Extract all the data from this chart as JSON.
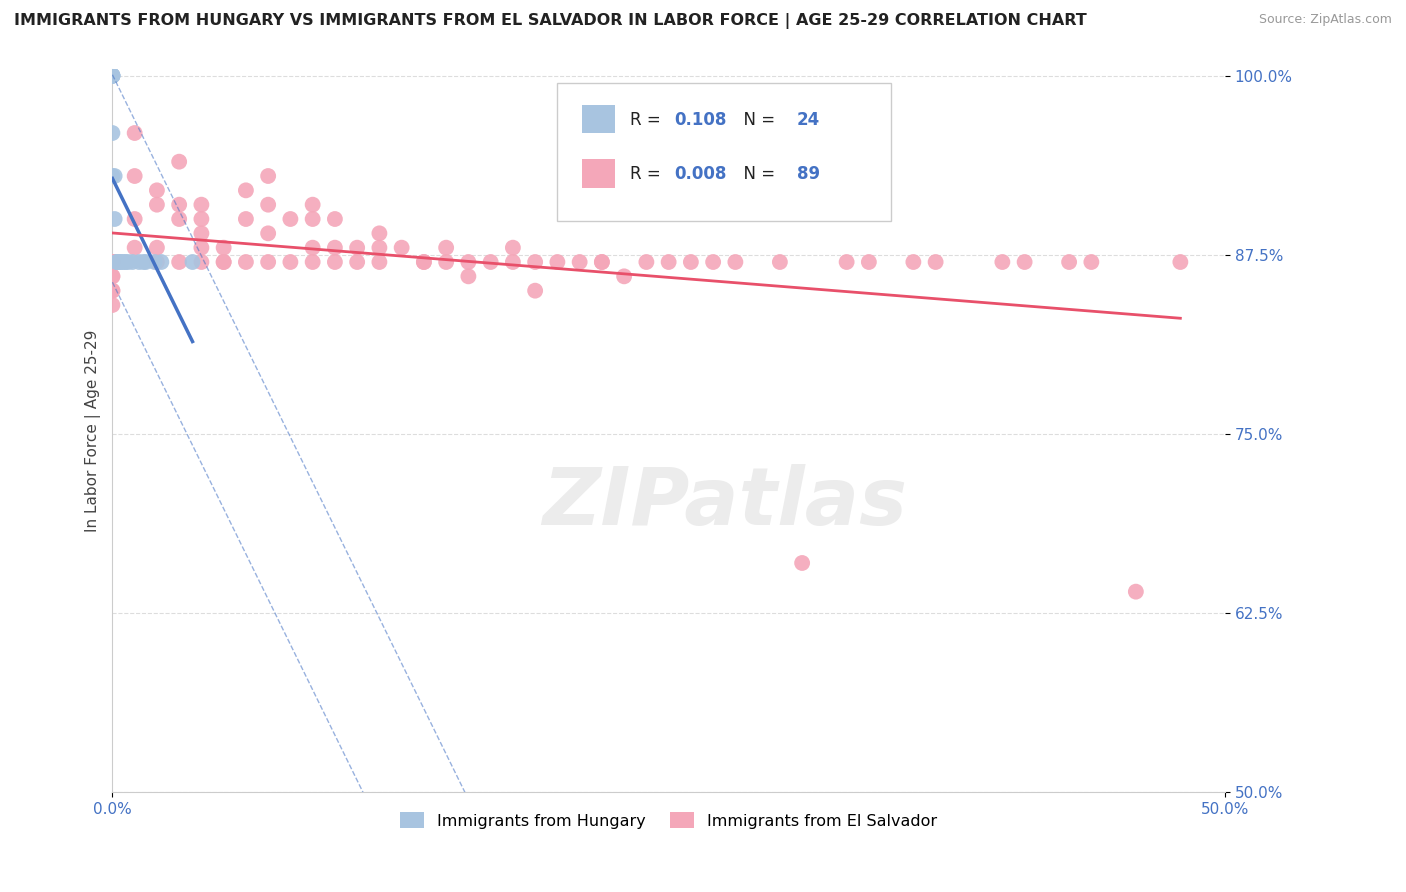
{
  "title": "IMMIGRANTS FROM HUNGARY VS IMMIGRANTS FROM EL SALVADOR IN LABOR FORCE | AGE 25-29 CORRELATION CHART",
  "source": "Source: ZipAtlas.com",
  "ylabel": "In Labor Force | Age 25-29",
  "xlim": [
    0.0,
    0.5
  ],
  "ylim": [
    0.5,
    1.005
  ],
  "xticks": [
    0.0,
    0.5
  ],
  "xticklabels": [
    "0.0%",
    "50.0%"
  ],
  "yticks": [
    0.5,
    0.625,
    0.75,
    0.875,
    1.0
  ],
  "yticklabels": [
    "50.0%",
    "62.5%",
    "75.0%",
    "87.5%",
    "100.0%"
  ],
  "r_hungary": 0.108,
  "n_hungary": 24,
  "r_salvador": 0.008,
  "n_salvador": 89,
  "hungary_x": [
    0.0,
    0.0,
    0.0,
    0.0,
    0.0,
    0.0,
    0.0,
    0.001,
    0.001,
    0.002,
    0.002,
    0.003,
    0.003,
    0.004,
    0.005,
    0.006,
    0.007,
    0.009,
    0.012,
    0.014,
    0.015,
    0.019,
    0.022,
    0.036
  ],
  "hungary_y": [
    1.0,
    1.0,
    1.0,
    1.0,
    1.0,
    0.96,
    0.93,
    0.93,
    0.9,
    0.87,
    0.87,
    0.87,
    0.87,
    0.87,
    0.87,
    0.87,
    0.87,
    0.87,
    0.87,
    0.87,
    0.87,
    0.87,
    0.87,
    0.87
  ],
  "salvador_x": [
    0.0,
    0.0,
    0.0,
    0.0,
    0.0,
    0.0,
    0.0,
    0.0,
    0.0,
    0.0,
    0.0,
    0.0,
    0.0,
    0.0,
    0.01,
    0.01,
    0.01,
    0.01,
    0.02,
    0.02,
    0.02,
    0.02,
    0.03,
    0.03,
    0.03,
    0.03,
    0.04,
    0.04,
    0.04,
    0.04,
    0.04,
    0.05,
    0.05,
    0.05,
    0.06,
    0.06,
    0.06,
    0.07,
    0.07,
    0.07,
    0.07,
    0.08,
    0.08,
    0.09,
    0.09,
    0.09,
    0.09,
    0.1,
    0.1,
    0.1,
    0.11,
    0.11,
    0.12,
    0.12,
    0.12,
    0.13,
    0.14,
    0.14,
    0.15,
    0.15,
    0.16,
    0.16,
    0.17,
    0.18,
    0.18,
    0.19,
    0.19,
    0.2,
    0.21,
    0.22,
    0.22,
    0.23,
    0.24,
    0.25,
    0.26,
    0.27,
    0.28,
    0.3,
    0.31,
    0.33,
    0.34,
    0.36,
    0.37,
    0.4,
    0.41,
    0.43,
    0.44,
    0.46,
    0.48
  ],
  "salvador_y": [
    0.87,
    0.87,
    0.87,
    0.87,
    0.87,
    0.87,
    0.87,
    0.87,
    0.87,
    0.86,
    0.86,
    0.85,
    0.85,
    0.84,
    0.96,
    0.93,
    0.9,
    0.88,
    0.92,
    0.91,
    0.88,
    0.87,
    0.94,
    0.91,
    0.9,
    0.87,
    0.91,
    0.9,
    0.89,
    0.88,
    0.87,
    0.88,
    0.87,
    0.87,
    0.92,
    0.9,
    0.87,
    0.93,
    0.91,
    0.89,
    0.87,
    0.9,
    0.87,
    0.91,
    0.9,
    0.88,
    0.87,
    0.9,
    0.88,
    0.87,
    0.88,
    0.87,
    0.89,
    0.88,
    0.87,
    0.88,
    0.87,
    0.87,
    0.88,
    0.87,
    0.87,
    0.86,
    0.87,
    0.88,
    0.87,
    0.87,
    0.85,
    0.87,
    0.87,
    0.87,
    0.87,
    0.86,
    0.87,
    0.87,
    0.87,
    0.87,
    0.87,
    0.87,
    0.66,
    0.87,
    0.87,
    0.87,
    0.87,
    0.87,
    0.87,
    0.87,
    0.87,
    0.64,
    0.87
  ],
  "bg_color": "#ffffff",
  "grid_color": "#dddddd",
  "hungary_line_color": "#4472c4",
  "salvador_line_color": "#e8506a",
  "hungary_dot_color": "#a8c4e0",
  "salvador_dot_color": "#f4a7b9",
  "hungary_legend_color": "#a8c4e0",
  "salvador_legend_color": "#f4a7b9",
  "legend_label_hungary": "Immigrants from Hungary",
  "legend_label_salvador": "Immigrants from El Salvador",
  "watermark_text": "ZIPatlas",
  "r_color": "#4472c4",
  "n_color": "#4472c4"
}
